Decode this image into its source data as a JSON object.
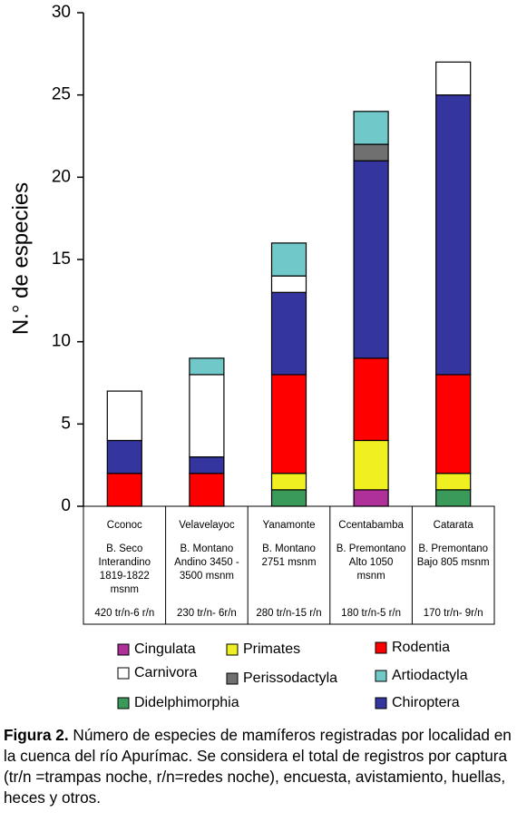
{
  "chart_data": {
    "type": "stacked-bar",
    "y_label": "N.° de  especies",
    "categories": [
      "Cconoc",
      "Velavelayoc",
      "Yanamonte",
      "Ccentabamba",
      "Catarata"
    ],
    "category_details": [
      [
        "B. Seco",
        "Interandino",
        "1819-1822",
        "msnm"
      ],
      [
        "B. Montano",
        "Andino  3450 -",
        "3500 msnm"
      ],
      [
        "B. Montano",
        "2751 msnm"
      ],
      [
        "B. Premontano",
        "Alto 1050",
        "msnm"
      ],
      [
        "B. Premontano",
        "Bajo 805 msnm"
      ]
    ],
    "category_effort": [
      "420 tr/n-6 r/n",
      "230 tr/n- 6r/n",
      "280 tr/n-15 r/n",
      "180 tr/n-5 r/n",
      "170 tr/n- 9r/n"
    ],
    "series": [
      {
        "name": "Didelphimorphia",
        "color": "#3a9a5a",
        "values": [
          0,
          0,
          1,
          0,
          1
        ]
      },
      {
        "name": "Cingulata",
        "color": "#b0309a",
        "values": [
          0,
          0,
          0,
          1,
          0
        ]
      },
      {
        "name": "Primates",
        "color": "#f0f020",
        "values": [
          0,
          0,
          1,
          3,
          1
        ]
      },
      {
        "name": "Rodentia",
        "color": "#ff0000",
        "values": [
          2,
          2,
          6,
          5,
          6
        ]
      },
      {
        "name": "Chiroptera",
        "color": "#3535a0",
        "values": [
          2,
          1,
          5,
          12,
          17
        ]
      },
      {
        "name": "Perissodactyla",
        "color": "#707070",
        "values": [
          0,
          0,
          0,
          1,
          0
        ]
      },
      {
        "name": "Carnivora",
        "color": "#ffffff",
        "values": [
          3,
          5,
          1,
          0,
          2
        ]
      },
      {
        "name": "Artiodactyla",
        "color": "#70c8c8",
        "values": [
          0,
          1,
          2,
          2,
          0
        ]
      }
    ],
    "ylim": [
      0,
      30
    ],
    "yticks": [
      0,
      5,
      10,
      15,
      20,
      25,
      30
    ]
  },
  "caption": {
    "label": "Figura 2.",
    "text": "Número de especies de mamíferos registradas por localidad en la cuenca del río Apurímac. Se considera el total de registros por captura (tr/n =trampas noche, r/n=redes noche), encuesta, avistamiento, huellas, heces y otros."
  }
}
